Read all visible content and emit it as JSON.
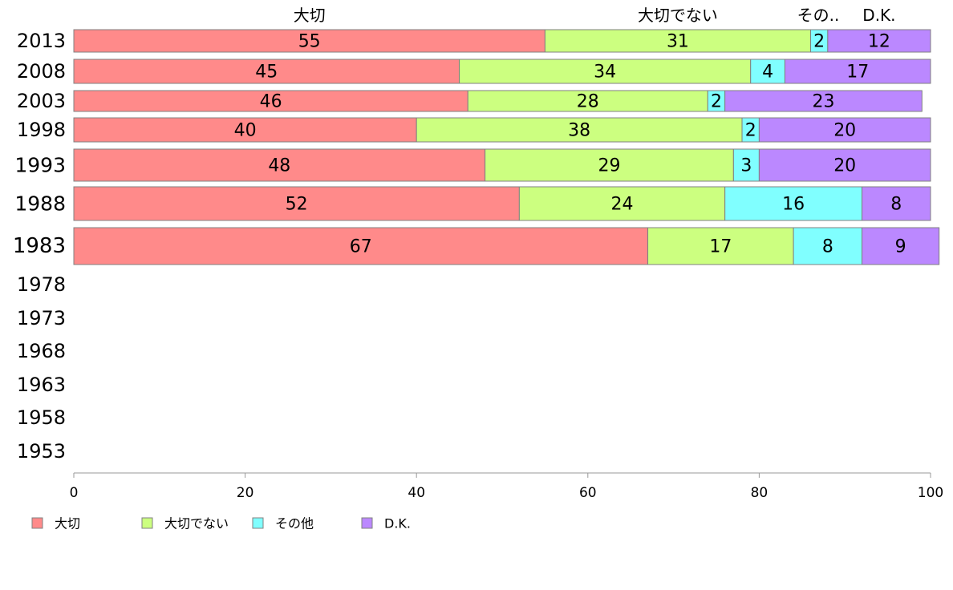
{
  "chart_data": {
    "type": "bar",
    "orientation": "horizontal",
    "stacked": true,
    "categories": [
      "2013",
      "2008",
      "2003",
      "1998",
      "1993",
      "1988",
      "1983",
      "1978",
      "1973",
      "1968",
      "1963",
      "1958",
      "1953"
    ],
    "series": [
      {
        "name": "大切",
        "header": "大切",
        "color": "#ff8a8a",
        "values": [
          55,
          45,
          46,
          40,
          48,
          52,
          67,
          null,
          null,
          null,
          null,
          null,
          null
        ]
      },
      {
        "name": "大切でない",
        "header": "大切でない",
        "color": "#ccff80",
        "values": [
          31,
          34,
          28,
          38,
          29,
          24,
          17,
          null,
          null,
          null,
          null,
          null,
          null
        ]
      },
      {
        "name": "その他",
        "header": "その..",
        "color": "#80ffff",
        "values": [
          2,
          4,
          2,
          2,
          3,
          16,
          8,
          null,
          null,
          null,
          null,
          null,
          null
        ]
      },
      {
        "name": "D.K.",
        "header": "D.K.",
        "color": "#bb88ff",
        "values": [
          12,
          17,
          23,
          20,
          20,
          8,
          9,
          null,
          null,
          null,
          null,
          null,
          null
        ]
      }
    ],
    "xlim": [
      0,
      100
    ],
    "xticks": [
      "0",
      "20",
      "40",
      "60",
      "80",
      "100"
    ],
    "legend_position": "bottom-left",
    "grid": false
  }
}
